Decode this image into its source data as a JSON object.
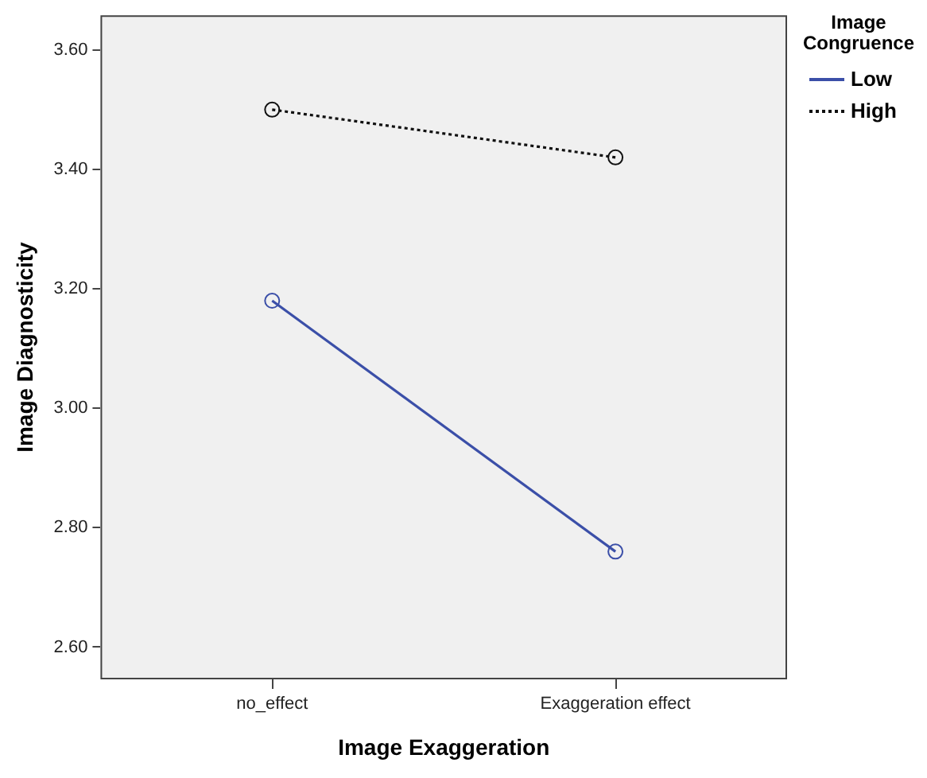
{
  "chart_data": {
    "type": "line",
    "xlabel": "Image Exaggeration",
    "ylabel": "Image Diagnosticity",
    "legend_title": "Image Congruence",
    "categories": [
      "no_effect",
      "Exaggeration effect"
    ],
    "series": [
      {
        "name": "Low",
        "color": "#3b4fa8",
        "values": [
          3.18,
          2.76
        ],
        "line_style": "solid"
      },
      {
        "name": "High",
        "color": "#111111",
        "values": [
          3.5,
          3.42
        ],
        "line_style": "dotted"
      }
    ],
    "ylim": [
      2.546,
      3.658
    ],
    "yticks": [
      {
        "value": 2.6,
        "label": "2.60"
      },
      {
        "value": 2.8,
        "label": "2.80"
      },
      {
        "value": 3.0,
        "label": "3.00"
      },
      {
        "value": 3.2,
        "label": "3.20"
      },
      {
        "value": 3.4,
        "label": "3.40"
      },
      {
        "value": 3.6,
        "label": "3.60"
      }
    ],
    "grid": false,
    "legend": "top right",
    "marker": "circle"
  }
}
